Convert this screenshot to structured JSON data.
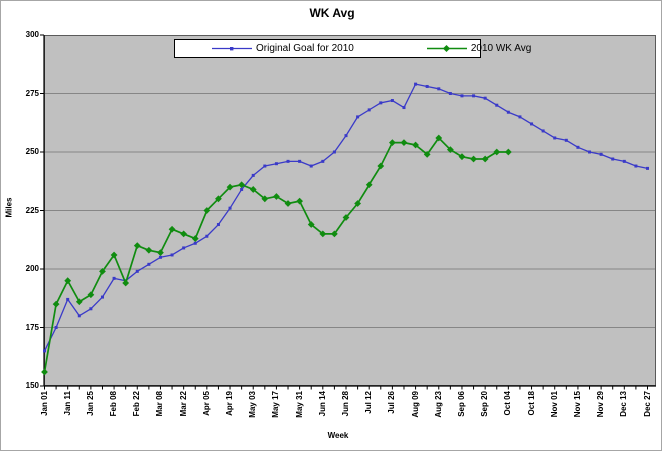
{
  "chart_data": {
    "type": "line",
    "title": "WK Avg",
    "xlabel": "Week",
    "ylabel": "Miles",
    "ylim": [
      150,
      300
    ],
    "yticks": [
      150,
      175,
      200,
      225,
      250,
      275,
      300
    ],
    "grid": true,
    "plot_bg_color": "#c0c0c0",
    "gridline_color": "#868686",
    "legend_position": "top-center-inside",
    "x_label_every_n_points": 2,
    "x_tick_labels": [
      "Jan 01",
      "Jan 11",
      "Jan 25",
      "Feb 08",
      "Feb 22",
      "Mar 08",
      "Mar 22",
      "Apr 05",
      "Apr 19",
      "May 03",
      "May 17",
      "May 31",
      "Jun 14",
      "Jun 28",
      "Jul 12",
      "Jul 26",
      "Aug 09",
      "Aug 23",
      "Sep 06",
      "Sep 20",
      "Oct 04",
      "Oct 18",
      "Nov 01",
      "Nov 15",
      "Nov 29",
      "Dec 13",
      "Dec 27"
    ],
    "series": [
      {
        "name": "Original Goal for 2010",
        "color": "#3a3ac8",
        "marker": "square",
        "values": [
          165,
          175,
          187,
          180,
          183,
          188,
          196,
          195,
          199,
          202,
          205,
          206,
          209,
          211,
          214,
          219,
          226,
          234,
          240,
          244,
          245,
          246,
          246,
          244,
          246,
          250,
          257,
          265,
          268,
          271,
          272,
          269,
          279,
          278,
          277,
          275,
          274,
          274,
          273,
          270,
          267,
          265,
          262,
          259,
          256,
          255,
          252,
          250,
          249,
          247,
          246,
          244,
          243
        ]
      },
      {
        "name": "2010 WK Avg",
        "color": "#108c10",
        "marker": "diamond",
        "values": [
          156,
          185,
          195,
          186,
          189,
          199,
          206,
          194,
          210,
          208,
          207,
          217,
          215,
          213,
          225,
          230,
          235,
          236,
          234,
          230,
          231,
          228,
          229,
          219,
          215,
          215,
          222,
          228,
          236,
          244,
          254,
          254,
          253,
          249,
          256,
          251,
          248,
          247,
          247,
          250,
          250
        ]
      }
    ]
  }
}
